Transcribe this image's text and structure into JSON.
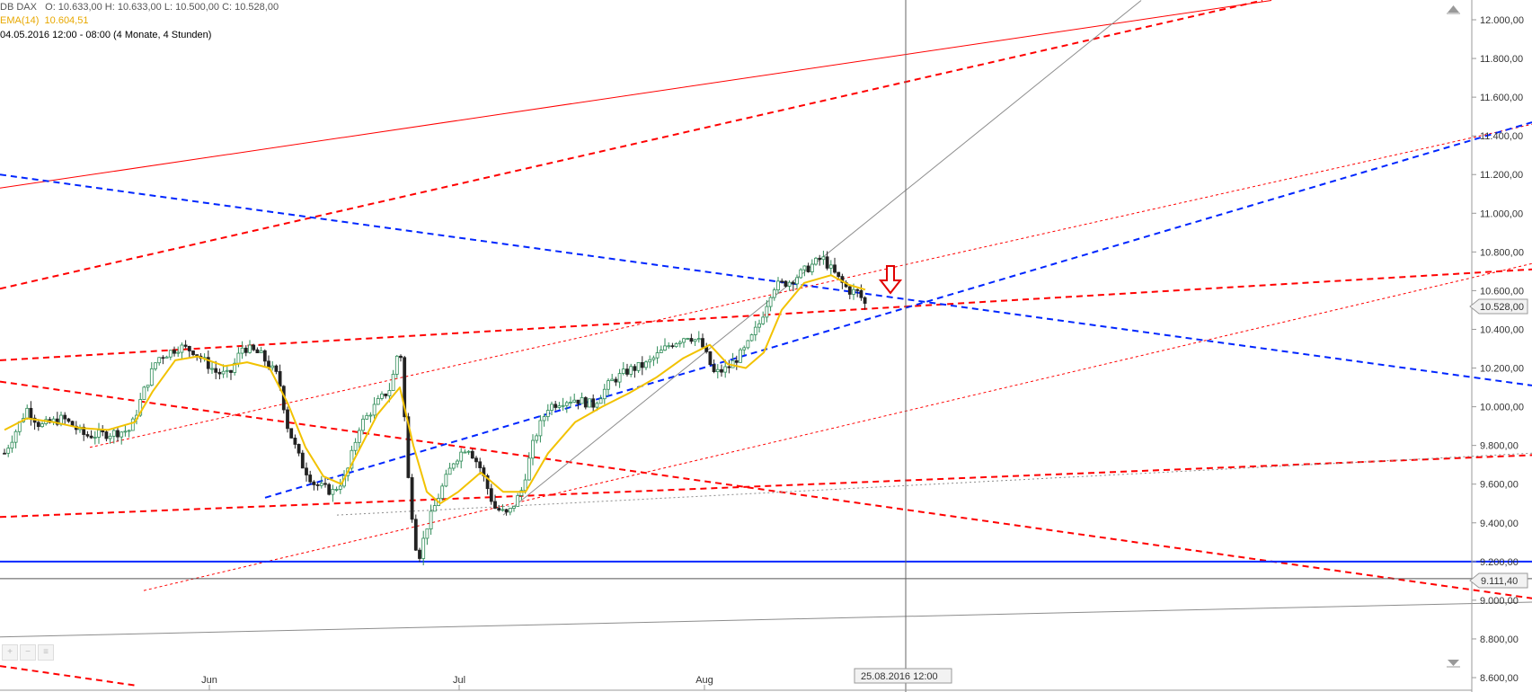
{
  "header": {
    "instrument": "DB DAX",
    "ohlc": "O: 10.633,00  H: 10.633,00  L: 10.500,00  C: 10.528,00",
    "ema_label": "EMA(14)",
    "ema_value": "10.604,51",
    "range": "04.05.2016 12:00 - 08:00 (4 Monate, 4 Stunden)"
  },
  "colors": {
    "up": "#2e8b57",
    "down": "#222222",
    "ema": "#f2c200",
    "red": "#ff0000",
    "blue": "#0026ff",
    "grey": "#8c8c8c"
  },
  "crosshair_label": "25.08.2016 12:00",
  "price_tags": {
    "last": "10.528,00",
    "level": "9.111,40"
  },
  "toolbar": [
    "zoom-in-icon",
    "zoom-out-icon",
    "menu-icon"
  ],
  "chart_data": {
    "type": "candlestick",
    "title": "",
    "y_range": [
      8600,
      12050
    ],
    "y_ticks": [
      "12.000,00",
      "11.800,00",
      "11.600,00",
      "11.400,00",
      "11.200,00",
      "11.000,00",
      "10.800,00",
      "10.600,00",
      "10.400,00",
      "10.200,00",
      "10.000,00",
      "9.800,00",
      "9.600,00",
      "9.400,00",
      "9.200,00",
      "9.000,00",
      "8.800,00",
      "8.600,00"
    ],
    "x_ticks": [
      "Jun",
      "Jul",
      "Aug"
    ],
    "price_path": [
      [
        5,
        9760
      ],
      [
        30,
        9990
      ],
      [
        45,
        9900
      ],
      [
        70,
        9940
      ],
      [
        95,
        9850
      ],
      [
        120,
        9860
      ],
      [
        145,
        9880
      ],
      [
        160,
        10080
      ],
      [
        175,
        10250
      ],
      [
        200,
        10310
      ],
      [
        215,
        10290
      ],
      [
        240,
        10180
      ],
      [
        255,
        10160
      ],
      [
        270,
        10310
      ],
      [
        290,
        10270
      ],
      [
        310,
        10150
      ],
      [
        320,
        9900
      ],
      [
        335,
        9710
      ],
      [
        350,
        9600
      ],
      [
        370,
        9560
      ],
      [
        385,
        9640
      ],
      [
        400,
        9900
      ],
      [
        420,
        10020
      ],
      [
        435,
        10100
      ],
      [
        445,
        10340
      ],
      [
        455,
        9580
      ],
      [
        465,
        9200
      ],
      [
        475,
        9380
      ],
      [
        490,
        9560
      ],
      [
        505,
        9720
      ],
      [
        520,
        9800
      ],
      [
        535,
        9680
      ],
      [
        550,
        9480
      ],
      [
        565,
        9440
      ],
      [
        580,
        9560
      ],
      [
        595,
        9840
      ],
      [
        610,
        10000
      ],
      [
        625,
        10030
      ],
      [
        640,
        10040
      ],
      [
        660,
        10010
      ],
      [
        680,
        10130
      ],
      [
        700,
        10190
      ],
      [
        720,
        10220
      ],
      [
        745,
        10320
      ],
      [
        765,
        10370
      ],
      [
        780,
        10330
      ],
      [
        795,
        10170
      ],
      [
        810,
        10200
      ],
      [
        830,
        10300
      ],
      [
        845,
        10430
      ],
      [
        860,
        10620
      ],
      [
        880,
        10650
      ],
      [
        900,
        10720
      ],
      [
        915,
        10770
      ],
      [
        925,
        10710
      ],
      [
        935,
        10650
      ],
      [
        945,
        10600
      ],
      [
        955,
        10590
      ],
      [
        963,
        10528
      ]
    ],
    "ema_path": [
      [
        5,
        9880
      ],
      [
        30,
        9940
      ],
      [
        60,
        9920
      ],
      [
        90,
        9890
      ],
      [
        120,
        9880
      ],
      [
        150,
        9920
      ],
      [
        170,
        10080
      ],
      [
        195,
        10240
      ],
      [
        220,
        10260
      ],
      [
        250,
        10210
      ],
      [
        275,
        10230
      ],
      [
        300,
        10200
      ],
      [
        320,
        10020
      ],
      [
        340,
        9790
      ],
      [
        360,
        9640
      ],
      [
        380,
        9600
      ],
      [
        400,
        9780
      ],
      [
        420,
        9960
      ],
      [
        445,
        10100
      ],
      [
        460,
        9800
      ],
      [
        475,
        9560
      ],
      [
        490,
        9500
      ],
      [
        510,
        9560
      ],
      [
        535,
        9660
      ],
      [
        560,
        9560
      ],
      [
        585,
        9560
      ],
      [
        610,
        9760
      ],
      [
        640,
        9920
      ],
      [
        670,
        10000
      ],
      [
        700,
        10070
      ],
      [
        730,
        10150
      ],
      [
        760,
        10250
      ],
      [
        790,
        10320
      ],
      [
        810,
        10220
      ],
      [
        830,
        10200
      ],
      [
        850,
        10280
      ],
      [
        870,
        10500
      ],
      [
        895,
        10640
      ],
      [
        925,
        10680
      ],
      [
        945,
        10630
      ],
      [
        963,
        10605
      ]
    ],
    "trendlines": [
      {
        "color": "red",
        "style": "solid",
        "from": [
          0,
          11130
        ],
        "to": [
          1415,
          12100
        ]
      },
      {
        "color": "red",
        "style": "dashed-bold",
        "from": [
          0,
          10610
        ],
        "to": [
          1405,
          12100
        ]
      },
      {
        "color": "red",
        "style": "dashed-bold",
        "from": [
          0,
          10240
        ],
        "to": [
          1705,
          10710
        ]
      },
      {
        "color": "red",
        "style": "dashed-bold",
        "from": [
          0,
          10130
        ],
        "to": [
          1705,
          9010
        ]
      },
      {
        "color": "red",
        "style": "dashed-bold",
        "from": [
          0,
          9430
        ],
        "to": [
          1705,
          9750
        ]
      },
      {
        "color": "red",
        "style": "dashed-bold",
        "from": [
          0,
          8660
        ],
        "to": [
          150,
          8560
        ]
      },
      {
        "color": "red",
        "style": "dotted-thin",
        "from": [
          100,
          9790
        ],
        "to": [
          1705,
          11460
        ]
      },
      {
        "color": "red",
        "style": "dotted-thin",
        "from": [
          160,
          9050
        ],
        "to": [
          1705,
          10740
        ]
      },
      {
        "color": "blue",
        "style": "dashed-bold",
        "from": [
          0,
          11200
        ],
        "to": [
          1705,
          10110
        ]
      },
      {
        "color": "blue",
        "style": "dashed-bold",
        "from": [
          295,
          9530
        ],
        "to": [
          1705,
          11470
        ]
      },
      {
        "color": "blue",
        "style": "solid",
        "from": [
          0,
          9200
        ],
        "to": [
          1705,
          9200
        ]
      },
      {
        "color": "grey",
        "style": "solid",
        "from": [
          560,
          9440
        ],
        "to": [
          1270,
          12100
        ]
      },
      {
        "color": "grey",
        "style": "dotted",
        "from": [
          375,
          9440
        ],
        "to": [
          1705,
          9760
        ]
      },
      {
        "color": "grey",
        "style": "solid",
        "from": [
          0,
          8810
        ],
        "to": [
          1705,
          8990
        ]
      },
      {
        "color": "grey",
        "style": "solid-dark",
        "from": [
          0,
          9111.4
        ],
        "to": [
          1705,
          9111.4
        ]
      }
    ]
  }
}
